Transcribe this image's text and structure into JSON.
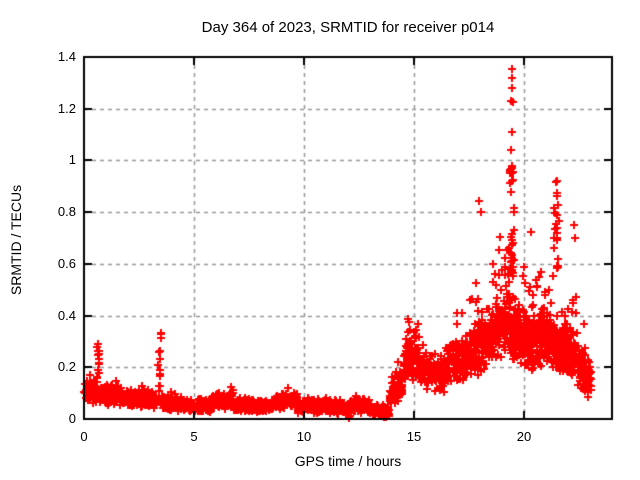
{
  "frame": {
    "background": "#ffffff",
    "border_color": "#000000",
    "text_color": "#000000"
  },
  "chart_data": {
    "type": "scatter",
    "title": "Day 364 of 2023, SRMTID for receiver p014",
    "xlabel": "GPS time / hours",
    "ylabel": "SRMTID / TECUs",
    "xlim": [
      0,
      24
    ],
    "ylim": [
      0,
      1.4
    ],
    "xticks": {
      "values": [
        0,
        5,
        10,
        15,
        20
      ],
      "labels": [
        "0",
        "5",
        "10",
        "15",
        "20"
      ]
    },
    "yticks": {
      "values": [
        0,
        0.2,
        0.4,
        0.6,
        0.8,
        1.0,
        1.2,
        1.4
      ],
      "labels": [
        "0",
        "0.2",
        "0.4",
        "0.6",
        "0.8",
        "1",
        "1.2",
        "1.4"
      ]
    },
    "grid": {
      "show": true,
      "style": "dashed",
      "color": "#999999",
      "dash": [
        4,
        4
      ]
    },
    "marker": {
      "shape": "plus",
      "color": "#ff0000",
      "size": 9,
      "stroke": 2
    },
    "series_name": "SRMTID",
    "seed": 364,
    "segments": [
      {
        "x0": 0.0,
        "x1": 0.55,
        "n": 60,
        "y0": 0.115,
        "y1": 0.1,
        "spread": 0.05,
        "tail_prob": 0.12,
        "tail_amp": 0.06
      },
      {
        "x0": 0.7,
        "x1": 1.6,
        "n": 110,
        "y0": 0.1,
        "y1": 0.088,
        "spread": 0.042,
        "tail_prob": 0.08,
        "tail_amp": 0.05
      },
      {
        "x0": 1.6,
        "x1": 3.3,
        "n": 200,
        "y0": 0.085,
        "y1": 0.072,
        "spread": 0.036,
        "tail_prob": 0.06,
        "tail_amp": 0.05
      },
      {
        "x0": 3.5,
        "x1": 4.6,
        "n": 130,
        "y0": 0.068,
        "y1": 0.052,
        "spread": 0.03,
        "tail_prob": 0.05,
        "tail_amp": 0.04
      },
      {
        "x0": 4.6,
        "x1": 5.8,
        "n": 140,
        "y0": 0.05,
        "y1": 0.052,
        "spread": 0.028,
        "tail_prob": 0.05,
        "tail_amp": 0.04
      },
      {
        "x0": 5.8,
        "x1": 6.8,
        "n": 120,
        "y0": 0.072,
        "y1": 0.07,
        "spread": 0.036,
        "tail_prob": 0.08,
        "tail_amp": 0.05
      },
      {
        "x0": 6.8,
        "x1": 8.6,
        "n": 210,
        "y0": 0.054,
        "y1": 0.05,
        "spread": 0.028,
        "tail_prob": 0.05,
        "tail_amp": 0.04
      },
      {
        "x0": 8.6,
        "x1": 9.7,
        "n": 130,
        "y0": 0.065,
        "y1": 0.068,
        "spread": 0.033,
        "tail_prob": 0.07,
        "tail_amp": 0.05
      },
      {
        "x0": 9.7,
        "x1": 11.0,
        "n": 160,
        "y0": 0.05,
        "y1": 0.045,
        "spread": 0.028,
        "tail_prob": 0.04,
        "tail_amp": 0.04
      },
      {
        "x0": 11.0,
        "x1": 12.1,
        "n": 130,
        "y0": 0.055,
        "y1": 0.04,
        "spread": 0.03,
        "tail_prob": 0.05,
        "tail_amp": 0.04
      },
      {
        "x0": 12.1,
        "x1": 13.0,
        "n": 110,
        "y0": 0.05,
        "y1": 0.052,
        "spread": 0.03,
        "tail_prob": 0.05,
        "tail_amp": 0.04
      },
      {
        "x0": 13.0,
        "x1": 13.9,
        "n": 110,
        "y0": 0.038,
        "y1": 0.028,
        "spread": 0.024,
        "tail_prob": 0.03,
        "tail_amp": 0.03
      },
      {
        "x0": 13.9,
        "x1": 14.5,
        "n": 80,
        "y0": 0.09,
        "y1": 0.14,
        "spread": 0.055,
        "tail_prob": 0.12,
        "tail_amp": 0.08
      },
      {
        "x0": 14.5,
        "x1": 15.25,
        "n": 95,
        "y0": 0.23,
        "y1": 0.25,
        "spread": 0.1,
        "tail_prob": 0.18,
        "tail_amp": 0.12
      },
      {
        "x0": 15.25,
        "x1": 16.4,
        "n": 120,
        "y0": 0.19,
        "y1": 0.17,
        "spread": 0.075,
        "tail_prob": 0.1,
        "tail_amp": 0.1
      },
      {
        "x0": 16.4,
        "x1": 17.6,
        "n": 150,
        "y0": 0.21,
        "y1": 0.24,
        "spread": 0.09,
        "tail_prob": 0.14,
        "tail_amp": 0.17
      },
      {
        "x0": 17.6,
        "x1": 18.7,
        "n": 160,
        "y0": 0.26,
        "y1": 0.31,
        "spread": 0.11,
        "tail_prob": 0.18,
        "tail_amp": 0.3
      },
      {
        "x0": 18.7,
        "x1": 19.35,
        "n": 110,
        "y0": 0.33,
        "y1": 0.38,
        "spread": 0.13,
        "tail_prob": 0.25,
        "tail_amp": 0.35
      },
      {
        "x0": 19.35,
        "x1": 20.2,
        "n": 170,
        "y0": 0.34,
        "y1": 0.3,
        "spread": 0.12,
        "tail_prob": 0.2,
        "tail_amp": 0.3
      },
      {
        "x0": 20.2,
        "x1": 21.2,
        "n": 170,
        "y0": 0.3,
        "y1": 0.32,
        "spread": 0.12,
        "tail_prob": 0.16,
        "tail_amp": 0.25
      },
      {
        "x0": 21.2,
        "x1": 22.4,
        "n": 200,
        "y0": 0.3,
        "y1": 0.25,
        "spread": 0.11,
        "tail_prob": 0.12,
        "tail_amp": 0.25
      },
      {
        "x0": 22.4,
        "x1": 23.05,
        "n": 110,
        "y0": 0.21,
        "y1": 0.15,
        "spread": 0.085,
        "tail_prob": 0.08,
        "tail_amp": 0.12
      }
    ],
    "spikes": [
      {
        "x0": 0.58,
        "x1": 0.68,
        "n": 16,
        "ymin": 0.1,
        "ymax": 0.335
      },
      {
        "x0": 3.38,
        "x1": 3.5,
        "n": 14,
        "ymin": 0.1,
        "ymax": 0.34
      },
      {
        "x0": 19.35,
        "x1": 19.55,
        "n": 26,
        "ymin": 0.55,
        "ymax": 0.98
      },
      {
        "x0": 21.35,
        "x1": 21.6,
        "n": 18,
        "ymin": 0.45,
        "ymax": 0.88
      }
    ],
    "outliers": [
      [
        19.46,
        1.352
      ],
      [
        19.44,
        1.318
      ],
      [
        19.47,
        1.282
      ],
      [
        19.43,
        1.23
      ],
      [
        19.5,
        1.225
      ],
      [
        19.45,
        1.11
      ],
      [
        19.42,
        1.04
      ],
      [
        19.48,
        0.955
      ],
      [
        19.52,
        0.924
      ],
      [
        19.4,
        0.878
      ],
      [
        21.48,
        0.921
      ],
      [
        21.46,
        0.915
      ],
      [
        21.52,
        0.862
      ],
      [
        21.5,
        0.79
      ],
      [
        17.95,
        0.845
      ],
      [
        18.05,
        0.8
      ],
      [
        20.33,
        0.725
      ],
      [
        22.28,
        0.75
      ],
      [
        22.33,
        0.7
      ],
      [
        12.05,
        0.005
      ],
      [
        12.1,
        0.012
      ],
      [
        13.65,
        0.008
      ]
    ]
  }
}
